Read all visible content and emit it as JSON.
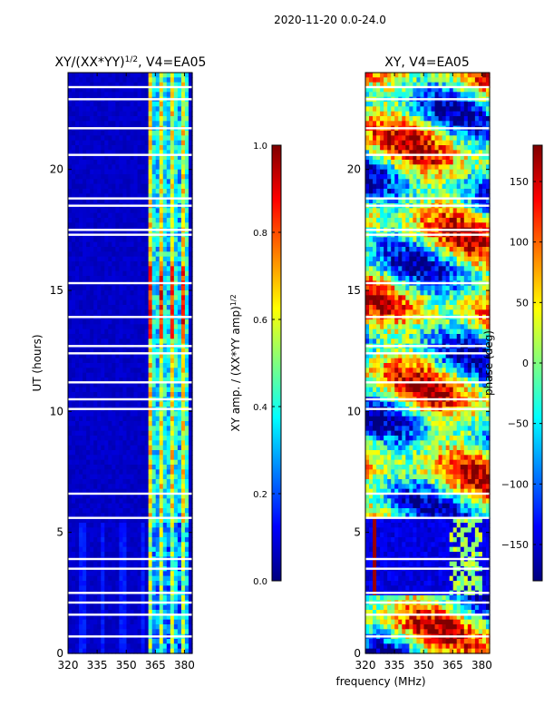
{
  "figure_title": "2020-11-20 0.0-24.0",
  "shared_xlabel": "frequency (MHz)",
  "chart_data": [
    {
      "type": "heatmap",
      "title_main": "XY/(XX*YY)",
      "title_exp": "1/2",
      "title_tail": ", V4=EA05",
      "ylabel": "UT (hours)",
      "xlim": [
        320,
        384
      ],
      "ylim": [
        0,
        24
      ],
      "xticks": [
        320,
        335,
        350,
        365,
        380
      ],
      "yticks": [
        0,
        5,
        10,
        15,
        20
      ],
      "colorbar": {
        "label_main": "XY amp. / (XX*YY amp)",
        "label_exp": "1/2",
        "range": [
          0.0,
          1.0
        ],
        "ticks": [
          "0.0",
          "0.2",
          "0.4",
          "0.6",
          "0.8",
          "1.0"
        ],
        "tick_values": [
          0.0,
          0.2,
          0.4,
          0.6,
          0.8,
          1.0
        ]
      },
      "dominant_value": 0.05,
      "bright_band_mhz": [
        361,
        382
      ],
      "bright_value": 0.45,
      "peak_hours": [
        13,
        16
      ],
      "peak_value": 0.85,
      "flagged_hours": [
        0.7,
        1.6,
        2.1,
        2.5,
        3.5,
        3.9,
        5.6,
        6.6,
        10.1,
        10.5,
        11.2,
        12.4,
        12.7,
        13.9,
        15.3,
        17.3,
        17.5,
        18.5,
        18.8,
        20.6,
        21.7,
        22.9,
        23.4
      ]
    },
    {
      "type": "heatmap",
      "title": "XY, V4=EA05",
      "xlim": [
        320,
        384
      ],
      "ylim": [
        0,
        24
      ],
      "xticks": [
        320,
        335,
        350,
        365,
        380
      ],
      "yticks": [
        0,
        5,
        10,
        15,
        20
      ],
      "colorbar": {
        "label": "phase (deg)",
        "range": [
          -180,
          180
        ],
        "ticks": [
          "−150",
          "−100",
          "−50",
          "0",
          "50",
          "100",
          "150"
        ],
        "tick_values": [
          -150,
          -100,
          -50,
          0,
          50,
          100,
          150
        ]
      },
      "low_phase_hours": [
        2.5,
        5.5
      ],
      "low_phase_value": -160,
      "flagged_hours": [
        0.7,
        1.6,
        2.1,
        2.5,
        3.5,
        3.9,
        5.6,
        6.6,
        10.1,
        10.5,
        11.2,
        12.4,
        12.7,
        13.9,
        15.3,
        17.3,
        17.5,
        18.5,
        18.8,
        20.6,
        21.7,
        22.9,
        23.4
      ]
    }
  ],
  "colors": {
    "axis": "#000000",
    "background": "#ffffff"
  }
}
